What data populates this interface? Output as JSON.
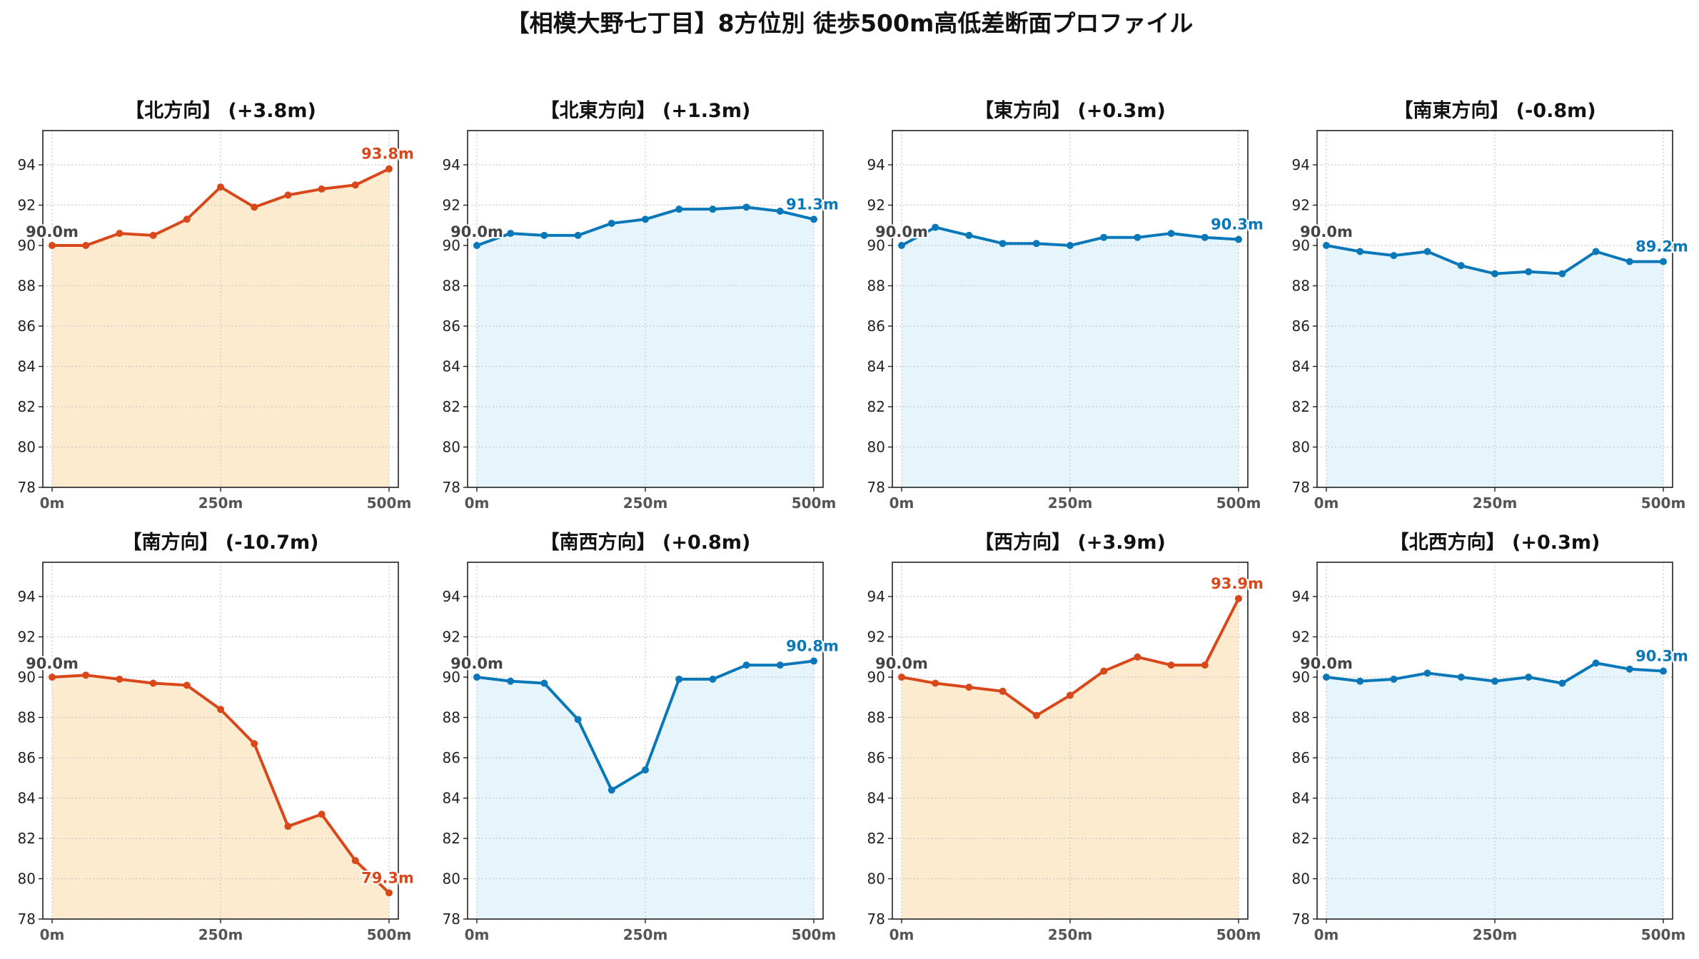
{
  "title": "【相模大野七丁目】8方位別 徒歩500m高低差断面プロファイル",
  "colors": {
    "up_line": "#d9481b",
    "up_fill": "#fdebd0",
    "down_line": "#0a78b8",
    "down_fill": "#e6f5fb",
    "start_label": "#444444",
    "grid": "#c8c8c8"
  },
  "chart_data": [
    {
      "type": "area",
      "title": "【北方向】 (+3.8m)",
      "trend": "up",
      "x": [
        0,
        50,
        100,
        150,
        200,
        250,
        300,
        350,
        400,
        450,
        500
      ],
      "y": [
        90.0,
        90.0,
        90.6,
        90.5,
        91.3,
        92.9,
        91.9,
        92.5,
        92.8,
        93.0,
        93.8
      ],
      "start_label": "90.0m",
      "end_label": "93.8m",
      "xticks": [
        "0m",
        "250m",
        "500m"
      ],
      "yticks": [
        78,
        80,
        82,
        84,
        86,
        88,
        90,
        92,
        94
      ],
      "xlim": [
        0,
        500
      ],
      "ylim": [
        78,
        95.7
      ],
      "grid": true
    },
    {
      "type": "area",
      "title": "【北東方向】 (+1.3m)",
      "trend": "down",
      "x": [
        0,
        50,
        100,
        150,
        200,
        250,
        300,
        350,
        400,
        450,
        500
      ],
      "y": [
        90.0,
        90.6,
        90.5,
        90.5,
        91.1,
        91.3,
        91.8,
        91.8,
        91.9,
        91.7,
        91.3
      ],
      "start_label": "90.0m",
      "end_label": "91.3m",
      "xticks": [
        "0m",
        "250m",
        "500m"
      ],
      "yticks": [
        78,
        80,
        82,
        84,
        86,
        88,
        90,
        92,
        94
      ],
      "xlim": [
        0,
        500
      ],
      "ylim": [
        78,
        95.7
      ],
      "grid": true
    },
    {
      "type": "area",
      "title": "【東方向】 (+0.3m)",
      "trend": "down",
      "x": [
        0,
        50,
        100,
        150,
        200,
        250,
        300,
        350,
        400,
        450,
        500
      ],
      "y": [
        90.0,
        90.9,
        90.5,
        90.1,
        90.1,
        90.0,
        90.4,
        90.4,
        90.6,
        90.4,
        90.3
      ],
      "start_label": "90.0m",
      "end_label": "90.3m",
      "xticks": [
        "0m",
        "250m",
        "500m"
      ],
      "yticks": [
        78,
        80,
        82,
        84,
        86,
        88,
        90,
        92,
        94
      ],
      "xlim": [
        0,
        500
      ],
      "ylim": [
        78,
        95.7
      ],
      "grid": true
    },
    {
      "type": "area",
      "title": "【南東方向】 (-0.8m)",
      "trend": "down",
      "x": [
        0,
        50,
        100,
        150,
        200,
        250,
        300,
        350,
        400,
        450,
        500
      ],
      "y": [
        90.0,
        89.7,
        89.5,
        89.7,
        89.0,
        88.6,
        88.7,
        88.6,
        89.7,
        89.2,
        89.2
      ],
      "start_label": "90.0m",
      "end_label": "89.2m",
      "xticks": [
        "0m",
        "250m",
        "500m"
      ],
      "yticks": [
        78,
        80,
        82,
        84,
        86,
        88,
        90,
        92,
        94
      ],
      "xlim": [
        0,
        500
      ],
      "ylim": [
        78,
        95.7
      ],
      "grid": true
    },
    {
      "type": "area",
      "title": "【南方向】 (-10.7m)",
      "trend": "up",
      "x": [
        0,
        50,
        100,
        150,
        200,
        250,
        300,
        350,
        400,
        450,
        500
      ],
      "y": [
        90.0,
        90.1,
        89.9,
        89.7,
        89.6,
        88.4,
        86.7,
        82.6,
        83.2,
        80.9,
        79.3
      ],
      "start_label": "90.0m",
      "end_label": "79.3m",
      "xticks": [
        "0m",
        "250m",
        "500m"
      ],
      "yticks": [
        78,
        80,
        82,
        84,
        86,
        88,
        90,
        92,
        94
      ],
      "xlim": [
        0,
        500
      ],
      "ylim": [
        78,
        95.7
      ],
      "grid": true
    },
    {
      "type": "area",
      "title": "【南西方向】 (+0.8m)",
      "trend": "down",
      "x": [
        0,
        50,
        100,
        150,
        200,
        250,
        300,
        350,
        400,
        450,
        500
      ],
      "y": [
        90.0,
        89.8,
        89.7,
        87.9,
        84.4,
        85.4,
        89.9,
        89.9,
        90.6,
        90.6,
        90.8
      ],
      "start_label": "90.0m",
      "end_label": "90.8m",
      "xticks": [
        "0m",
        "250m",
        "500m"
      ],
      "yticks": [
        78,
        80,
        82,
        84,
        86,
        88,
        90,
        92,
        94
      ],
      "xlim": [
        0,
        500
      ],
      "ylim": [
        78,
        95.7
      ],
      "grid": true
    },
    {
      "type": "area",
      "title": "【西方向】 (+3.9m)",
      "trend": "up",
      "x": [
        0,
        50,
        100,
        150,
        200,
        250,
        300,
        350,
        400,
        450,
        500
      ],
      "y": [
        90.0,
        89.7,
        89.5,
        89.3,
        88.1,
        89.1,
        90.3,
        91.0,
        90.6,
        90.6,
        93.9
      ],
      "start_label": "90.0m",
      "end_label": "93.9m",
      "xticks": [
        "0m",
        "250m",
        "500m"
      ],
      "yticks": [
        78,
        80,
        82,
        84,
        86,
        88,
        90,
        92,
        94
      ],
      "xlim": [
        0,
        500
      ],
      "ylim": [
        78,
        95.7
      ],
      "grid": true
    },
    {
      "type": "area",
      "title": "【北西方向】 (+0.3m)",
      "trend": "down",
      "x": [
        0,
        50,
        100,
        150,
        200,
        250,
        300,
        350,
        400,
        450,
        500
      ],
      "y": [
        90.0,
        89.8,
        89.9,
        90.2,
        90.0,
        89.8,
        90.0,
        89.7,
        90.7,
        90.4,
        90.3
      ],
      "start_label": "90.0m",
      "end_label": "90.3m",
      "xticks": [
        "0m",
        "250m",
        "500m"
      ],
      "yticks": [
        78,
        80,
        82,
        84,
        86,
        88,
        90,
        92,
        94
      ],
      "xlim": [
        0,
        500
      ],
      "ylim": [
        78,
        95.7
      ],
      "grid": true
    }
  ]
}
